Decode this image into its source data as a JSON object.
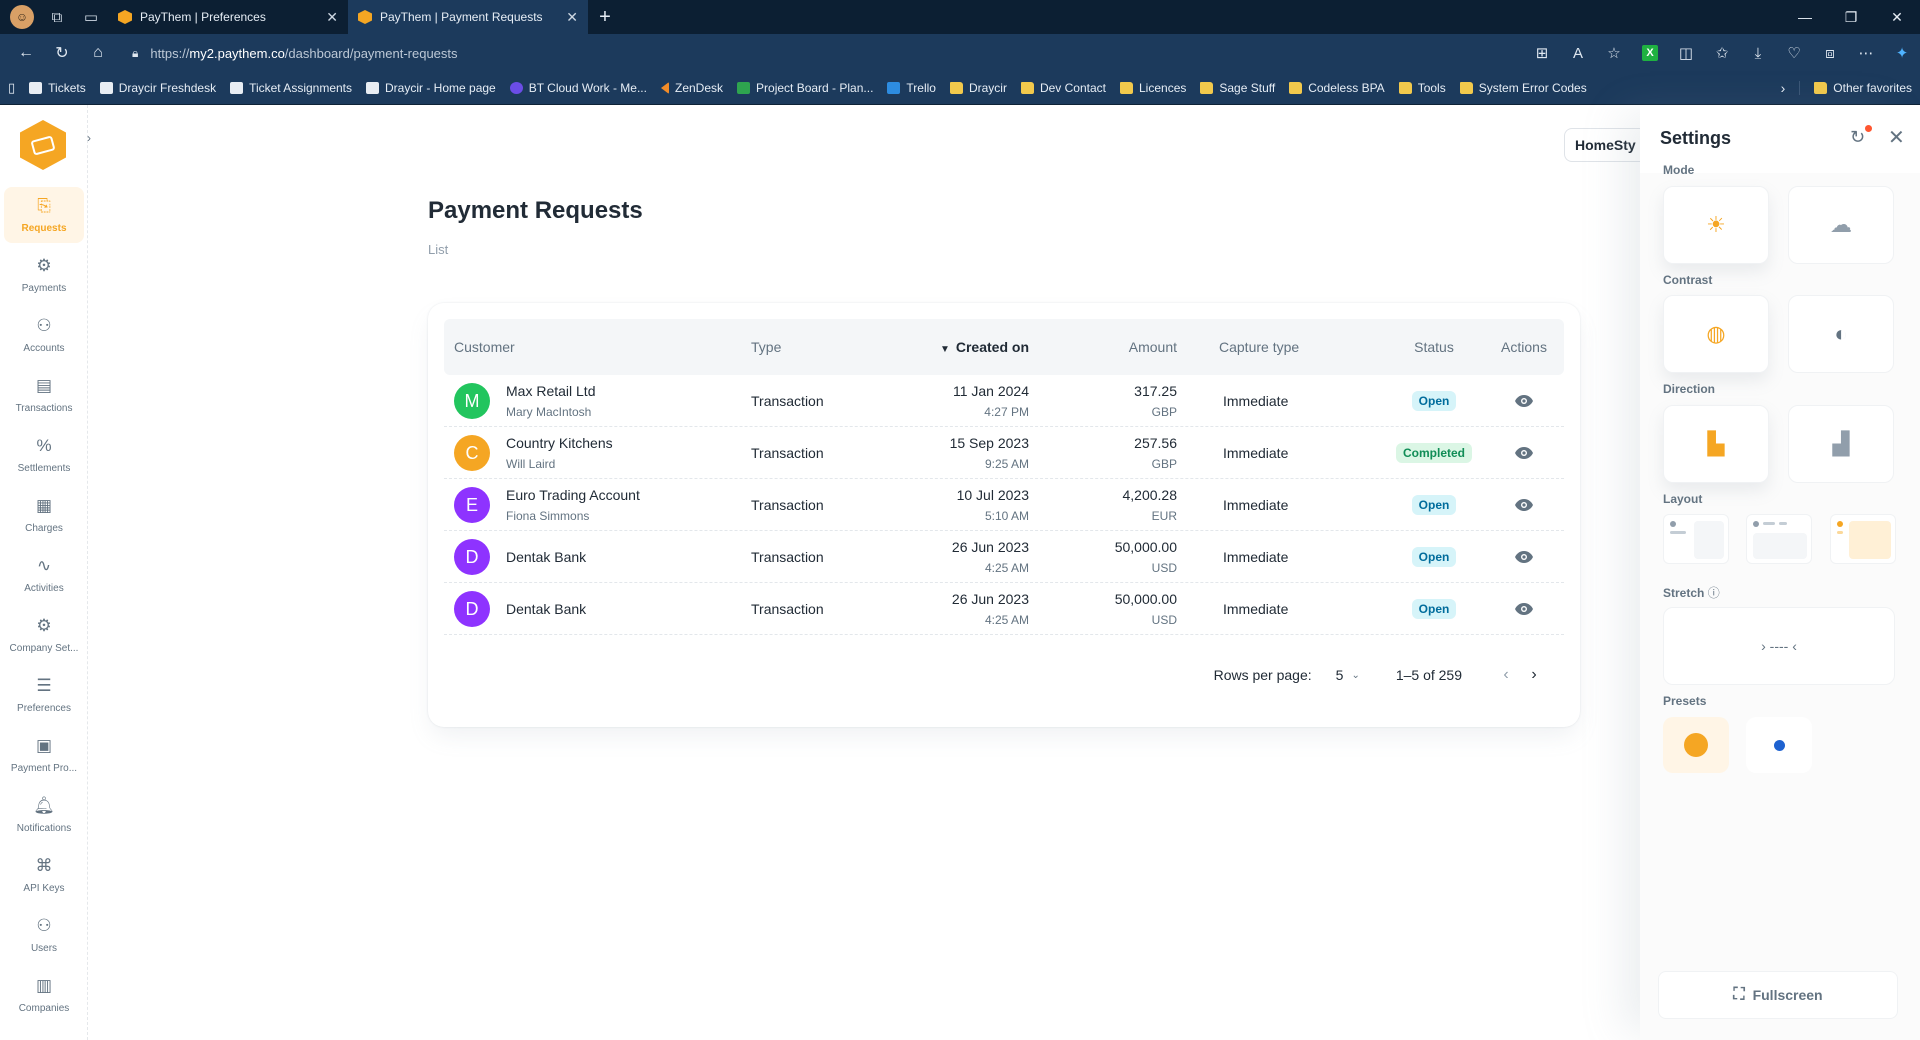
{
  "browser": {
    "tabs": [
      {
        "title": "PayThem | Preferences",
        "active": false
      },
      {
        "title": "PayThem | Payment Requests",
        "active": true
      }
    ],
    "url_scheme": "https://",
    "url_host": "my2.paythem.co",
    "url_path": "/dashboard/payment-requests",
    "bookmarks": [
      {
        "label": "Tickets",
        "icon": "page-icon"
      },
      {
        "label": "Draycir Freshdesk",
        "icon": "page-icon"
      },
      {
        "label": "Ticket Assignments",
        "icon": "page-icon"
      },
      {
        "label": "Draycir - Home page",
        "icon": "page-icon"
      },
      {
        "label": "BT Cloud Work - Me...",
        "icon": "bt-icon"
      },
      {
        "label": "ZenDesk",
        "icon": "zendesk-icon"
      },
      {
        "label": "Project Board - Plan...",
        "icon": "planner-icon"
      },
      {
        "label": "Trello",
        "icon": "trello-icon"
      },
      {
        "label": "Draycir",
        "icon": "folder-icon"
      },
      {
        "label": "Dev Contact",
        "icon": "folder-icon"
      },
      {
        "label": "Licences",
        "icon": "folder-icon"
      },
      {
        "label": "Sage Stuff",
        "icon": "folder-icon"
      },
      {
        "label": "Codeless BPA",
        "icon": "folder-icon"
      },
      {
        "label": "Tools",
        "icon": "folder-icon"
      },
      {
        "label": "System Error Codes",
        "icon": "folder-icon"
      }
    ],
    "other_favorites": "Other favorites"
  },
  "sidebar": {
    "items": [
      {
        "label": "Requests",
        "icon": "requests-icon",
        "active": true
      },
      {
        "label": "Payments",
        "icon": "payments-icon"
      },
      {
        "label": "Accounts",
        "icon": "accounts-icon"
      },
      {
        "label": "Transactions",
        "icon": "transactions-icon"
      },
      {
        "label": "Settlements",
        "icon": "percent-icon"
      },
      {
        "label": "Charges",
        "icon": "calculator-icon"
      },
      {
        "label": "Activities",
        "icon": "activity-icon"
      },
      {
        "label": "Company Set...",
        "icon": "gear-icon"
      },
      {
        "label": "Preferences",
        "icon": "sliders-icon"
      },
      {
        "label": "Payment Pro...",
        "icon": "payment-provider-icon"
      },
      {
        "label": "Notifications",
        "icon": "bell-icon"
      },
      {
        "label": "API Keys",
        "icon": "network-icon"
      },
      {
        "label": "Users",
        "icon": "users-icon"
      },
      {
        "label": "Companies",
        "icon": "buildings-icon"
      }
    ]
  },
  "header": {
    "org_selector": "HomeSty"
  },
  "main": {
    "title": "Payment Requests",
    "breadcrumb": "List",
    "table": {
      "columns": {
        "customer": "Customer",
        "type": "Type",
        "created": "Created on",
        "amount": "Amount",
        "capture": "Capture type",
        "status": "Status",
        "actions": "Actions"
      },
      "rows": [
        {
          "initial": "M",
          "color": "#22c55e",
          "name": "Max Retail Ltd",
          "contact": "Mary MacIntosh",
          "type": "Transaction",
          "date": "11 Jan 2024",
          "time": "4:27 PM",
          "amount": "317.25",
          "currency": "GBP",
          "capture": "Immediate",
          "status": "Open",
          "status_kind": "open"
        },
        {
          "initial": "C",
          "color": "#f5a623",
          "name": "Country Kitchens",
          "contact": "Will Laird",
          "type": "Transaction",
          "date": "15 Sep 2023",
          "time": "9:25 AM",
          "amount": "257.56",
          "currency": "GBP",
          "capture": "Immediate",
          "status": "Completed",
          "status_kind": "done"
        },
        {
          "initial": "E",
          "color": "#8e33ff",
          "name": "Euro Trading Account",
          "contact": "Fiona Simmons",
          "type": "Transaction",
          "date": "10 Jul 2023",
          "time": "5:10 AM",
          "amount": "4,200.28",
          "currency": "EUR",
          "capture": "Immediate",
          "status": "Open",
          "status_kind": "open"
        },
        {
          "initial": "D",
          "color": "#8e33ff",
          "name": "Dentak Bank",
          "contact": "",
          "type": "Transaction",
          "date": "26 Jun 2023",
          "time": "4:25 AM",
          "amount": "50,000.00",
          "currency": "USD",
          "capture": "Immediate",
          "status": "Open",
          "status_kind": "open"
        },
        {
          "initial": "D",
          "color": "#8e33ff",
          "name": "Dentak Bank",
          "contact": "",
          "type": "Transaction",
          "date": "26 Jun 2023",
          "time": "4:25 AM",
          "amount": "50,000.00",
          "currency": "USD",
          "capture": "Immediate",
          "status": "Open",
          "status_kind": "open"
        }
      ]
    },
    "pagination": {
      "rows_per_page_label": "Rows per page:",
      "rows_per_page": "5",
      "range": "1–5 of 259"
    }
  },
  "settings": {
    "title": "Settings",
    "mode_label": "Mode",
    "contrast_label": "Contrast",
    "direction_label": "Direction",
    "layout_label": "Layout",
    "stretch_label": "Stretch",
    "presets_label": "Presets",
    "fullscreen_label": "Fullscreen",
    "accent": "#f5a623",
    "preset_colors": [
      "#f5a623",
      "#1e62d0"
    ]
  }
}
